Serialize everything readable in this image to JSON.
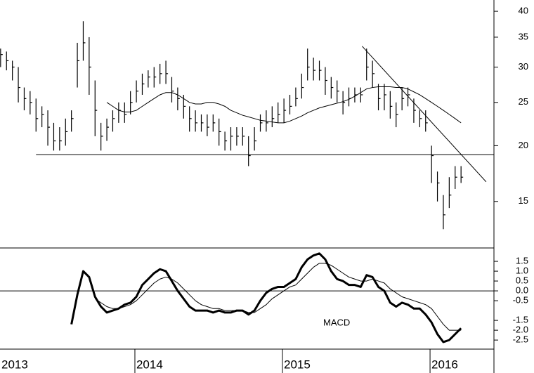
{
  "chart_data": [
    {
      "type": "ohlc",
      "x": [
        2013.09,
        2013.13,
        2013.17,
        2013.21,
        2013.25,
        2013.29,
        2013.33,
        2013.37,
        2013.41,
        2013.45,
        2013.49,
        2013.53,
        2013.57,
        2013.61,
        2013.65,
        2013.69,
        2013.73,
        2013.77,
        2013.81,
        2013.85,
        2013.89,
        2013.93,
        2013.97,
        2014.01,
        2014.05,
        2014.09,
        2014.13,
        2014.17,
        2014.21,
        2014.25,
        2014.29,
        2014.33,
        2014.37,
        2014.41,
        2014.45,
        2014.49,
        2014.53,
        2014.57,
        2014.61,
        2014.65,
        2014.69,
        2014.73,
        2014.77,
        2014.81,
        2014.85,
        2014.89,
        2014.93,
        2014.97,
        2015.01,
        2015.05,
        2015.09,
        2015.13,
        2015.17,
        2015.21,
        2015.25,
        2015.29,
        2015.33,
        2015.37,
        2015.41,
        2015.45,
        2015.49,
        2015.53,
        2015.57,
        2015.61,
        2015.65,
        2015.69,
        2015.73,
        2015.77,
        2015.81,
        2015.85,
        2015.89,
        2015.93,
        2015.97,
        2016.01,
        2016.05,
        2016.09,
        2016.13,
        2016.17,
        2016.21
      ],
      "high": [
        33,
        32.5,
        31,
        30,
        27,
        26.5,
        25.5,
        24.5,
        24,
        22.5,
        22,
        23,
        24,
        34,
        38,
        35,
        28,
        22.5,
        23,
        24,
        25,
        25,
        26.5,
        28,
        29,
        29.5,
        30,
        30.5,
        31,
        28.5,
        27,
        26,
        24.5,
        24,
        23.5,
        23.5,
        23.5,
        23,
        21.5,
        22,
        22,
        22,
        21,
        22,
        23.5,
        24,
        24.5,
        25,
        25.5,
        26,
        27,
        29,
        33,
        31.5,
        31,
        30,
        28.5,
        28,
        26.5,
        27,
        27,
        27,
        33,
        31,
        27.5,
        27.5,
        26.5,
        25,
        27,
        27,
        25.5,
        24,
        24,
        20,
        17.5,
        15.5,
        17,
        18,
        18
      ],
      "low": [
        30,
        29.5,
        28,
        25,
        24,
        23.5,
        21.5,
        22,
        20,
        19.5,
        19.5,
        20,
        21.5,
        27,
        31,
        26,
        21,
        19.5,
        20.5,
        21.5,
        22.5,
        22.5,
        23.5,
        25,
        26,
        27,
        27,
        27.5,
        27.5,
        25,
        24,
        23,
        21.5,
        21.5,
        21.5,
        21,
        21.5,
        20,
        19.5,
        19.5,
        20,
        20,
        18,
        19.5,
        21.5,
        21.5,
        22,
        22.5,
        22.5,
        23.5,
        24.5,
        25.5,
        28,
        28,
        28,
        26,
        25.5,
        25,
        23.5,
        24.5,
        25,
        25,
        28,
        27,
        24,
        24,
        23,
        22,
        24,
        24.5,
        22.5,
        22,
        21.5,
        16.5,
        15,
        13,
        14.5,
        16,
        16.5
      ],
      "close": [
        32,
        31,
        30,
        27,
        25.5,
        25,
        23,
        23.5,
        22,
        20.5,
        20.5,
        21.5,
        23,
        31,
        34,
        30,
        24,
        21,
        22,
        23,
        24,
        23.5,
        25,
        26.5,
        27.5,
        28.5,
        28.5,
        29,
        29,
        26.5,
        25.5,
        24.5,
        23,
        22.5,
        22.5,
        22,
        22.5,
        21.5,
        20.5,
        21,
        21,
        21,
        19,
        20.5,
        22.5,
        22.5,
        23,
        23.5,
        24,
        24.5,
        25.5,
        27,
        30,
        29.5,
        29.5,
        28,
        27,
        26.5,
        25,
        25.5,
        26,
        26,
        30,
        29,
        25.5,
        26,
        24.5,
        23.5,
        25.5,
        26,
        24,
        23,
        22.5,
        19,
        16.5,
        14,
        15.5,
        17,
        17
      ],
      "moving_average": [
        null,
        null,
        null,
        null,
        null,
        null,
        null,
        null,
        null,
        null,
        null,
        null,
        null,
        null,
        null,
        null,
        null,
        null,
        25,
        24.5,
        24,
        23.8,
        23.8,
        24,
        24.5,
        25,
        25.5,
        26,
        26.3,
        26.3,
        26,
        25.5,
        25,
        24.8,
        24.8,
        25,
        25,
        24.8,
        24.5,
        24,
        23.7,
        23.4,
        23.2,
        23,
        22.8,
        22.7,
        22.6,
        22.5,
        22.5,
        22.7,
        23,
        23.3,
        23.7,
        24,
        24.3,
        24.5,
        24.7,
        24.9,
        25.1,
        25.4,
        25.8,
        26.3,
        26.8,
        27,
        27.1,
        27.1,
        27.1,
        27,
        27,
        26.8,
        26.4,
        26,
        25.5,
        25,
        24.5,
        24,
        23.5,
        23,
        22.5
      ],
      "trendlines": [
        {
          "x": [
            2013.33,
            2016.433
          ],
          "y": [
            19.1,
            19.1
          ]
        },
        {
          "x": [
            2015.54,
            2016.38
          ],
          "y": [
            33.4,
            16.6
          ]
        }
      ],
      "xlim": [
        2013.086,
        2016.433
      ],
      "xticks": [
        2013,
        2014,
        2015,
        2016
      ],
      "ylim": [
        11.8,
        42.4
      ],
      "yticks": [
        15,
        20,
        25,
        30,
        35,
        40
      ],
      "log_scale": true,
      "color": "#000000"
    },
    {
      "type": "line",
      "label": "MACD",
      "series": [
        {
          "color": "#000000",
          "width": 3,
          "values": [
            null,
            null,
            null,
            null,
            null,
            null,
            null,
            null,
            null,
            null,
            null,
            null,
            -1.7,
            -0.2,
            1.0,
            0.7,
            -0.3,
            -0.8,
            -1.1,
            -1.0,
            -0.9,
            -0.7,
            -0.6,
            -0.3,
            0.3,
            0.6,
            0.9,
            1.1,
            1.0,
            0.5,
            0.0,
            -0.4,
            -0.8,
            -1.0,
            -1.0,
            -1.0,
            -1.1,
            -1.0,
            -1.1,
            -1.1,
            -1.0,
            -1.0,
            -1.2,
            -1.0,
            -0.5,
            -0.1,
            0.1,
            0.2,
            0.2,
            0.4,
            0.6,
            1.2,
            1.6,
            1.8,
            1.9,
            1.6,
            1.0,
            0.6,
            0.5,
            0.3,
            0.3,
            0.2,
            0.8,
            0.7,
            0.2,
            0.0,
            -0.6,
            -0.8,
            -0.6,
            -0.7,
            -0.9,
            -0.9,
            -1.2,
            -1.6,
            -2.2,
            -2.6,
            -2.5,
            -2.2,
            -1.9
          ]
        },
        {
          "color": "#000000",
          "width": 1,
          "values": [
            null,
            null,
            null,
            null,
            null,
            null,
            null,
            null,
            null,
            null,
            null,
            null,
            null,
            null,
            null,
            null,
            -0.4,
            -0.6,
            -0.8,
            -0.9,
            -0.9,
            -0.8,
            -0.7,
            -0.5,
            -0.2,
            0.1,
            0.4,
            0.6,
            0.7,
            0.6,
            0.4,
            0.1,
            -0.2,
            -0.5,
            -0.7,
            -0.8,
            -0.9,
            -0.9,
            -1.0,
            -1.0,
            -1.0,
            -1.0,
            -1.1,
            -1.1,
            -0.9,
            -0.7,
            -0.4,
            -0.2,
            0.0,
            0.2,
            0.3,
            0.6,
            0.9,
            1.2,
            1.4,
            1.4,
            1.3,
            1.1,
            0.9,
            0.7,
            0.6,
            0.5,
            0.5,
            0.6,
            0.5,
            0.4,
            0.1,
            -0.1,
            -0.3,
            -0.4,
            -0.5,
            -0.6,
            -0.7,
            -0.9,
            -1.3,
            -1.7,
            -2.0,
            -2.0,
            -2.0
          ]
        }
      ],
      "ylim": [
        -2.96,
        2.18
      ],
      "yticks": [
        1.5,
        {
          "value": 1,
          "label": "1.0"
        },
        0.5,
        {
          "value": 0,
          "label": "0.0"
        },
        -0.5,
        -1.5,
        {
          "value": -2,
          "label": "-2.0"
        },
        -2.5
      ],
      "zero_line": true
    }
  ]
}
